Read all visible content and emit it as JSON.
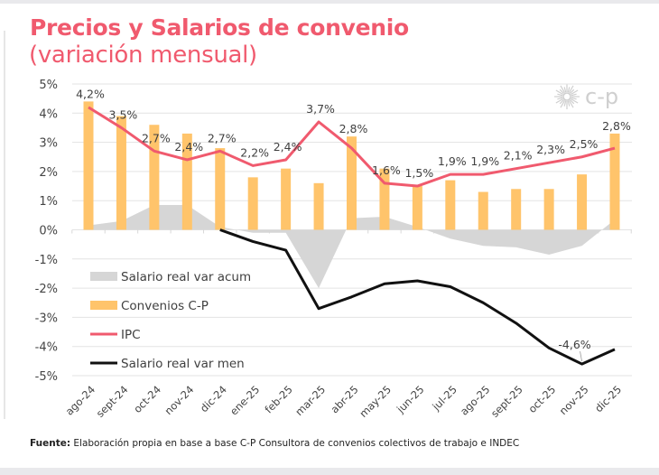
{
  "header": {
    "title": "Precios y Salarios de convenio",
    "subtitle": "(variación mensual)"
  },
  "logo": {
    "icon": "sun-burst-icon",
    "text": "c-p"
  },
  "footer": {
    "source_label": "Fuente:",
    "source_text": " Elaboración propia en base a base C-P Consultora de convenios colectivos de trabajo e INDEC"
  },
  "colors": {
    "ipc": "#f05a6e",
    "convenios": "#ffc46b",
    "salario_acum": "#d6d6d6",
    "salario_men": "#111111",
    "title": "#f05a6e",
    "grid": "#e3e3e3"
  },
  "chart_data": {
    "type": "bar",
    "title": "Precios y Salarios de convenio (variación mensual)",
    "xlabel": "",
    "ylabel": "",
    "ylim": [
      -5,
      5
    ],
    "yticks": [
      5,
      4,
      3,
      2,
      1,
      0,
      -1,
      -2,
      -3,
      -4,
      -5
    ],
    "ytick_labels": [
      "5%",
      "4%",
      "3%",
      "2%",
      "1%",
      "0%",
      "-1%",
      "-2%",
      "-3%",
      "-4%",
      "-5%"
    ],
    "grid": true,
    "legend_position": "bottom-left",
    "categories": [
      "ago-24",
      "sept-24",
      "oct-24",
      "nov-24",
      "dic-24",
      "ene-25",
      "feb-25",
      "mar-25",
      "abr-25",
      "may-25",
      "jun-25",
      "jul-25",
      "ago-25",
      "sept-25",
      "oct-25",
      "nov-25",
      "dic-25"
    ],
    "series": [
      {
        "name": "Salario real var acum",
        "type": "area",
        "values": [
          0.15,
          0.3,
          0.85,
          0.85,
          0.1,
          -0.1,
          -0.1,
          -2.0,
          0.4,
          0.45,
          0.1,
          -0.3,
          -0.55,
          -0.6,
          -0.85,
          -0.55,
          0.35
        ]
      },
      {
        "name": "Convenios C-P",
        "type": "bar",
        "values": [
          4.4,
          3.9,
          3.6,
          3.3,
          2.8,
          1.8,
          2.1,
          1.6,
          3.2,
          2.1,
          1.5,
          1.7,
          1.3,
          1.4,
          1.4,
          1.9,
          3.3
        ]
      },
      {
        "name": "IPC",
        "type": "line",
        "values": [
          4.2,
          3.5,
          2.7,
          2.4,
          2.7,
          2.2,
          2.4,
          3.7,
          2.8,
          1.6,
          1.5,
          1.9,
          1.9,
          2.1,
          2.3,
          2.5,
          2.8
        ],
        "data_labels": [
          "4,2%",
          "3,5%",
          "2,7%",
          "2,4%",
          "2,7%",
          "2,2%",
          "2,4%",
          "3,7%",
          "2,8%",
          "1,6%",
          "1,5%",
          "1,9%",
          "1,9%",
          "2,1%",
          "2,3%",
          "2,5%",
          "2,8%"
        ]
      },
      {
        "name": "Salario real var men",
        "type": "line",
        "values": [
          null,
          null,
          null,
          null,
          0.0,
          -0.4,
          -0.7,
          -2.7,
          -2.3,
          -1.85,
          -1.75,
          -1.95,
          -2.5,
          -3.2,
          -4.05,
          -4.6,
          -4.1
        ],
        "annotation": {
          "index": 15,
          "label": "-4,6%"
        }
      }
    ]
  }
}
